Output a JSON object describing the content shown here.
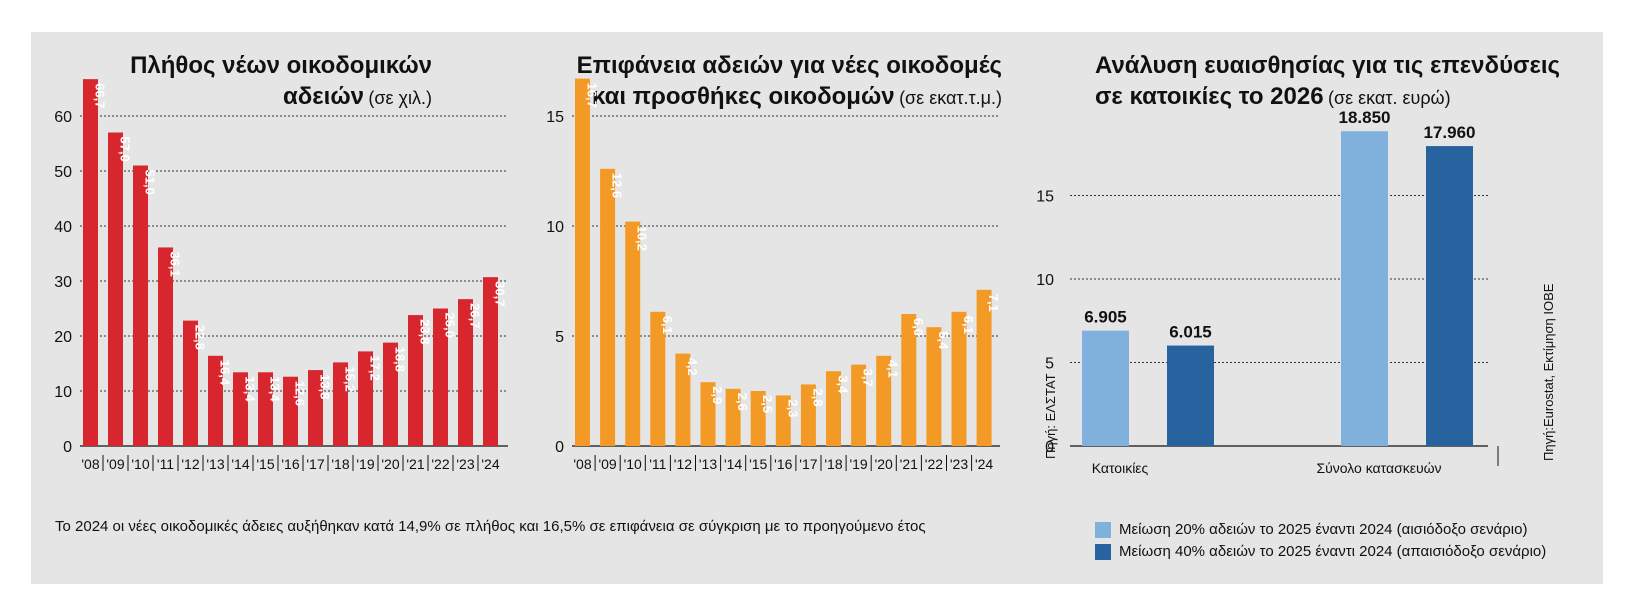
{
  "colors": {
    "chart1_bar": "#d7262e",
    "chart2_bar": "#f39a26",
    "scenario_optimistic": "#7fb1dc",
    "scenario_pessimistic": "#27639e",
    "panel_bg": "#e5e5e5"
  },
  "chart_data": [
    {
      "type": "bar",
      "title": "Πλήθος νέων οικοδομικών",
      "title_line2": "αδειών",
      "unit": "(σε χιλ.)",
      "categories": [
        "'08",
        "'09",
        "'10",
        "'11",
        "'12",
        "'13",
        "'14",
        "'15",
        "'16",
        "'17",
        "'18",
        "'19",
        "'20",
        "'21",
        "'22",
        "'23",
        "'24"
      ],
      "values": [
        66.7,
        57.0,
        51.0,
        36.1,
        22.8,
        16.4,
        13.4,
        13.4,
        12.6,
        13.8,
        15.2,
        17.2,
        18.8,
        23.8,
        25.0,
        26.7,
        30.7
      ],
      "value_labels": [
        "66,7",
        "57,0",
        "51,0",
        "36,1",
        "22,8",
        "16,4",
        "13,4",
        "13,4",
        "12,6",
        "13,8",
        "15,2",
        "17,2",
        "18,8",
        "23,8",
        "25,0",
        "26,7",
        "30,7"
      ],
      "yticks": [
        0,
        10,
        20,
        30,
        40,
        50,
        60
      ],
      "ylim": [
        0,
        67
      ],
      "grid": true
    },
    {
      "type": "bar",
      "title": "Επιφάνεια αδειών για νέες οικοδομές",
      "title_line2": "και προσθήκες οικοδομών",
      "unit": "(σε εκατ.τ.μ.)",
      "categories": [
        "'08",
        "'09",
        "'10",
        "'11",
        "'12",
        "'13",
        "'14",
        "'15",
        "'16",
        "'17",
        "'18",
        "'19",
        "'20",
        "'21",
        "'22",
        "'23",
        "'24"
      ],
      "values": [
        16.7,
        12.6,
        10.2,
        6.1,
        4.2,
        2.9,
        2.6,
        2.5,
        2.3,
        2.8,
        3.4,
        3.7,
        4.1,
        6.0,
        5.4,
        6.1,
        7.1
      ],
      "value_labels": [
        "16,7",
        "12,6",
        "10,2",
        "6,1",
        "4,2",
        "2,9",
        "2,6",
        "2,5",
        "2,3",
        "2,8",
        "3,4",
        "3,7",
        "4,1",
        "6,0",
        "5,4",
        "6,1",
        "7,1"
      ],
      "yticks": [
        0,
        5,
        10,
        15
      ],
      "ylim": [
        0,
        16.7
      ],
      "grid": true,
      "source": "Πηγή: ΕΛΣΤΑΤ"
    },
    {
      "type": "bar",
      "title": "Ανάλυση ευαισθησίας για τις επενδύσεις",
      "title_line2": "σε κατοικίες το 2026",
      "unit": "(σε εκατ. ευρώ)",
      "categories": [
        "Κατοικίες",
        "Σύνολο κατασκευών"
      ],
      "series": [
        {
          "name": "Μείωση 20% αδειών το 2025 έναντι 2024 (αισιόδοξο σενάριο)",
          "values": [
            6.905,
            18.85
          ],
          "value_labels": [
            "6.905",
            "18.850"
          ]
        },
        {
          "name": "Μείωση 40% αδειών το 2025 έναντι 2024 (απαισιόδοξο σενάριο)",
          "values": [
            6.015,
            17.96
          ],
          "value_labels": [
            "6.015",
            "17.960"
          ]
        }
      ],
      "yticks": [
        0,
        5,
        10,
        15
      ],
      "ylim": [
        0,
        20
      ],
      "grid": true,
      "legend": "bottom",
      "source": "Πηγή:Eurostat, Εκτίμηση ΙΟΒΕ"
    }
  ],
  "note": "Το 2024 οι νέες οικοδομικές άδειες αυξήθηκαν κατά 14,9% σε πλήθος και 16,5% σε επιφάνεια σε σύγκριση με το προηγούμενο έτος"
}
